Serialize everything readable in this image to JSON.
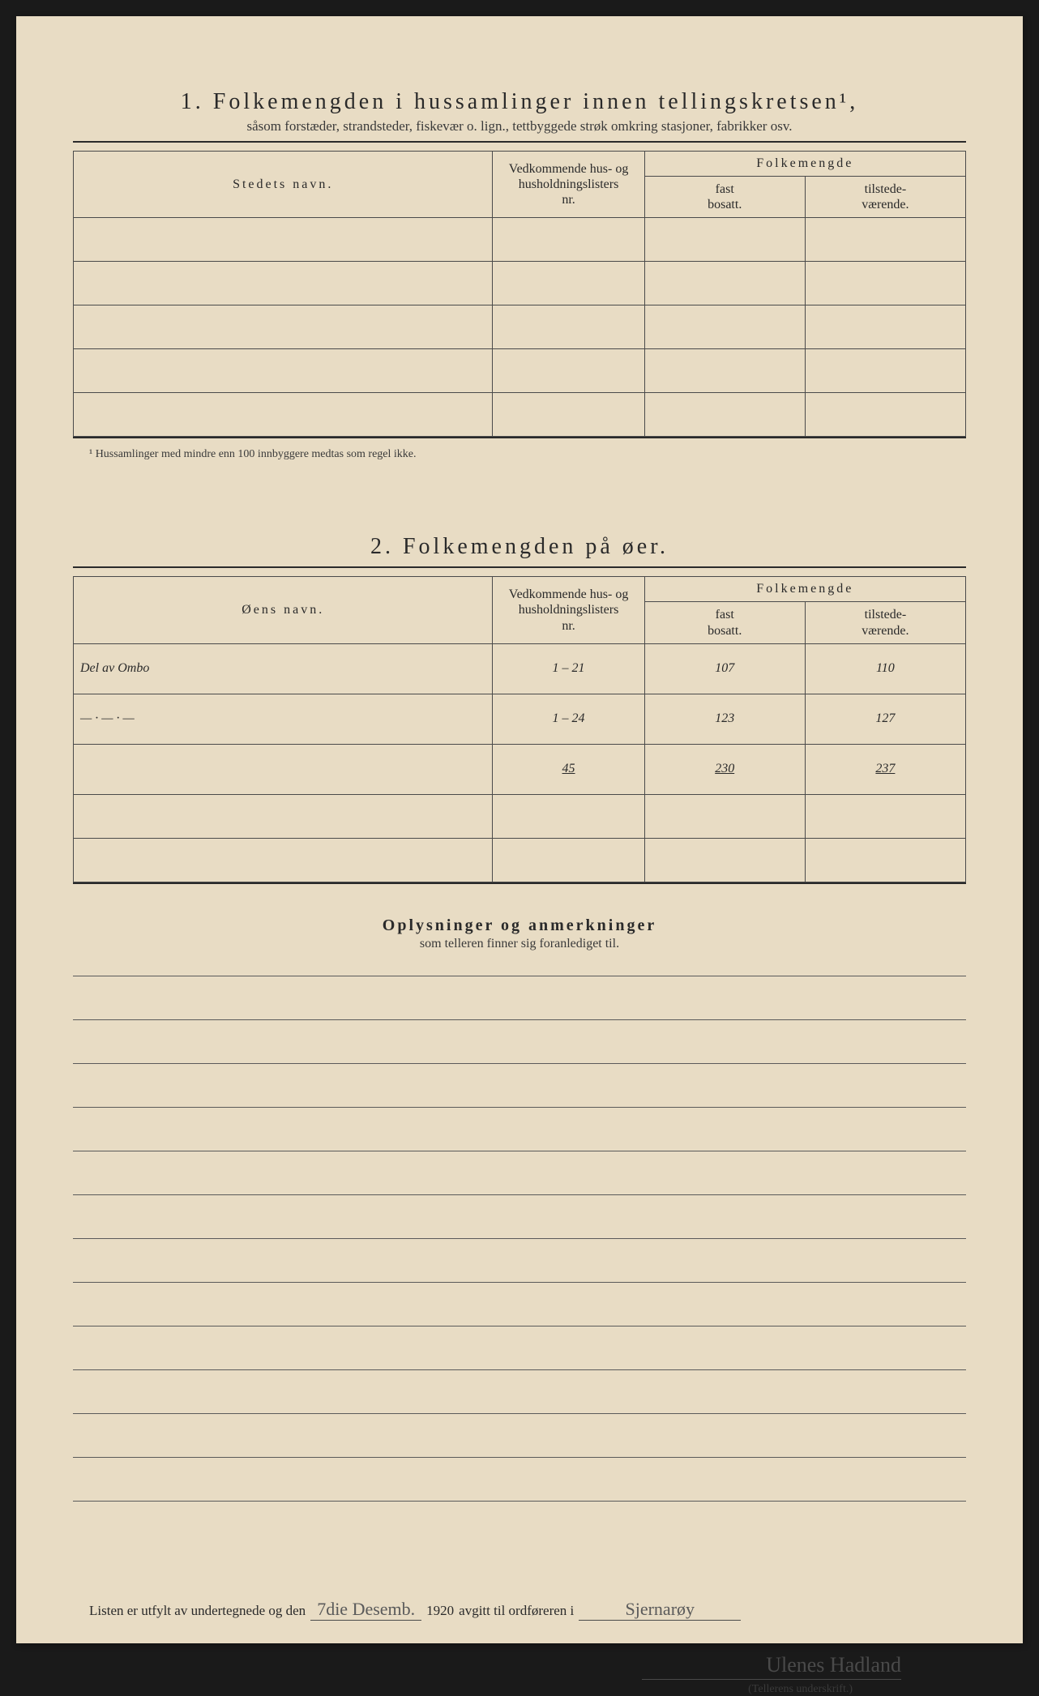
{
  "colors": {
    "page_bg": "#e8dcc4",
    "outer_bg": "#1a1a1a",
    "text": "#2a2a2a",
    "rule": "#4a4a4a",
    "handwriting": "#6a6a6a"
  },
  "section1": {
    "number": "1.",
    "title": "Folkemengden i hussamlinger innen tellingskretsen¹,",
    "subtitle": "såsom forstæder, strandsteder, fiskevær o. lign., tettbyggede strøk omkring stasjoner, fabrikker osv.",
    "col_name": "Stedets navn.",
    "col_hus_l1": "Vedkommende hus- og",
    "col_hus_l2": "husholdningslisters",
    "col_hus_l3": "nr.",
    "col_folke": "Folkemengde",
    "col_fast_l1": "fast",
    "col_fast_l2": "bosatt.",
    "col_til_l1": "tilstede-",
    "col_til_l2": "værende.",
    "empty_rows": 5,
    "footnote": "¹ Hussamlinger med mindre enn 100 innbyggere medtas som regel ikke."
  },
  "section2": {
    "number": "2.",
    "title": "Folkemengden på øer.",
    "col_name": "Øens navn.",
    "rows": [
      {
        "name": "Del av Ombo",
        "hus": "1 – 21",
        "fast": "107",
        "til": "110"
      },
      {
        "name": "— · — · —",
        "hus": "1 – 24",
        "fast": "123",
        "til": "127"
      },
      {
        "name": "",
        "hus": "45",
        "fast": "230",
        "til": "237",
        "sum": true
      }
    ],
    "empty_rows": 2
  },
  "section3": {
    "title": "Oplysninger og anmerkninger",
    "subtitle": "som telleren finner sig foranlediget til.",
    "ruled_lines": 12
  },
  "footer": {
    "prefix": "Listen er utfylt av undertegnede og den",
    "date_hw": "7die Desemb.",
    "year": "1920",
    "mid": "avgitt til ordføreren i",
    "place_hw": "Sjernarøy",
    "signature": "Ulenes Hadland",
    "sign_label": "(Tellerens underskrift.)"
  }
}
